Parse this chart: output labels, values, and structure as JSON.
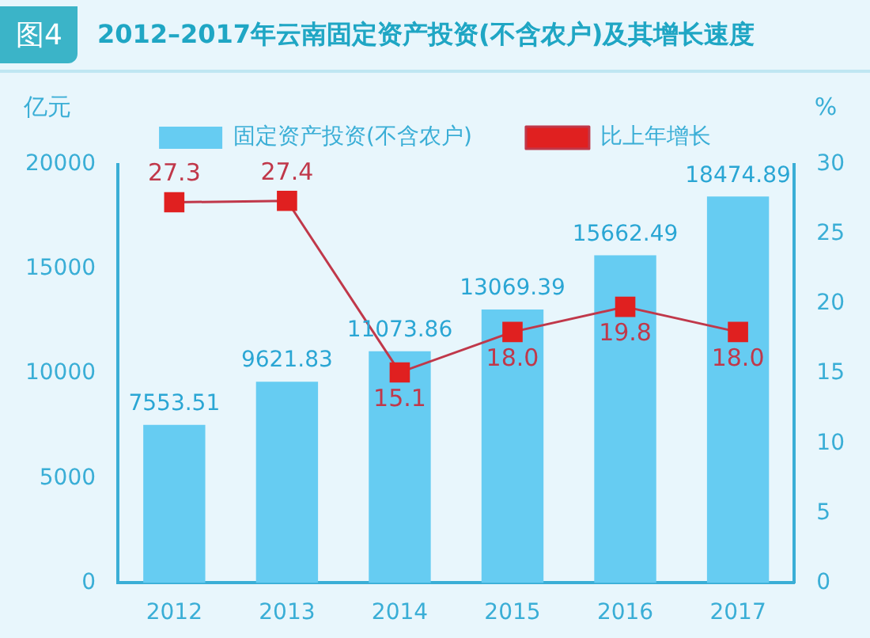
{
  "chart_data": {
    "type": "bar",
    "title": "2012–2017年云南固定资产投资(不含农户)及其增长速度",
    "annotations": [
      "图4"
    ],
    "ylabel": "亿元",
    "y2label": "%",
    "categories": [
      "2012",
      "2013",
      "2014",
      "2015",
      "2016",
      "2017"
    ],
    "series": [
      {
        "name": "固定资产投资(不含农户)",
        "color": "#66ccf2",
        "values": [
          7553.51,
          9621.83,
          11073.86,
          13069.39,
          15662.49,
          18474.89
        ]
      },
      {
        "name": "比上年增长",
        "type": "line",
        "axis": "y2",
        "color": "#e02020",
        "marker": "square",
        "values": [
          27.3,
          27.4,
          15.1,
          18.0,
          19.8,
          18.0
        ],
        "value_labels": [
          "27.3",
          "27.4",
          "15.1",
          "18.0",
          "19.8",
          "18.0"
        ]
      }
    ],
    "ylim": [
      0,
      20000
    ],
    "yticks": [
      0,
      5000,
      10000,
      15000,
      20000
    ],
    "y2lim": [
      0,
      30
    ],
    "y2ticks": [
      0,
      5,
      10,
      15,
      20,
      25,
      30
    ],
    "legend": "top",
    "grid": false,
    "data_labels": true
  }
}
